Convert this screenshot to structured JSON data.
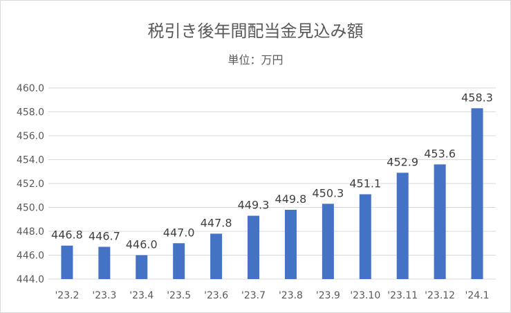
{
  "chart_data": {
    "type": "bar",
    "title": "税引き後年間配当金見込み額",
    "subtitle": "単位：万円",
    "categories": [
      "'23.2",
      "'23.3",
      "'23.4",
      "'23.5",
      "'23.6",
      "'23.7",
      "'23.8",
      "'23.9",
      "'23.10",
      "'23.11",
      "'23.12",
      "'24.1"
    ],
    "values": [
      446.8,
      446.7,
      446.0,
      447.0,
      447.8,
      449.3,
      449.8,
      450.3,
      451.1,
      452.9,
      453.6,
      458.3
    ],
    "value_labels": [
      "446.8",
      "446.7",
      "446.0",
      "447.0",
      "447.8",
      "449.3",
      "449.8",
      "450.3",
      "451.1",
      "452.9",
      "453.6",
      "458.3"
    ],
    "y_ticks": [
      "444.0",
      "446.0",
      "448.0",
      "450.0",
      "452.0",
      "454.0",
      "456.0",
      "458.0",
      "460.0"
    ],
    "ylim": [
      444,
      460
    ],
    "ystep": 2,
    "grid": true,
    "legend": "none",
    "bar_color": "#4472C4",
    "grid_color": "#d9d9d9"
  }
}
